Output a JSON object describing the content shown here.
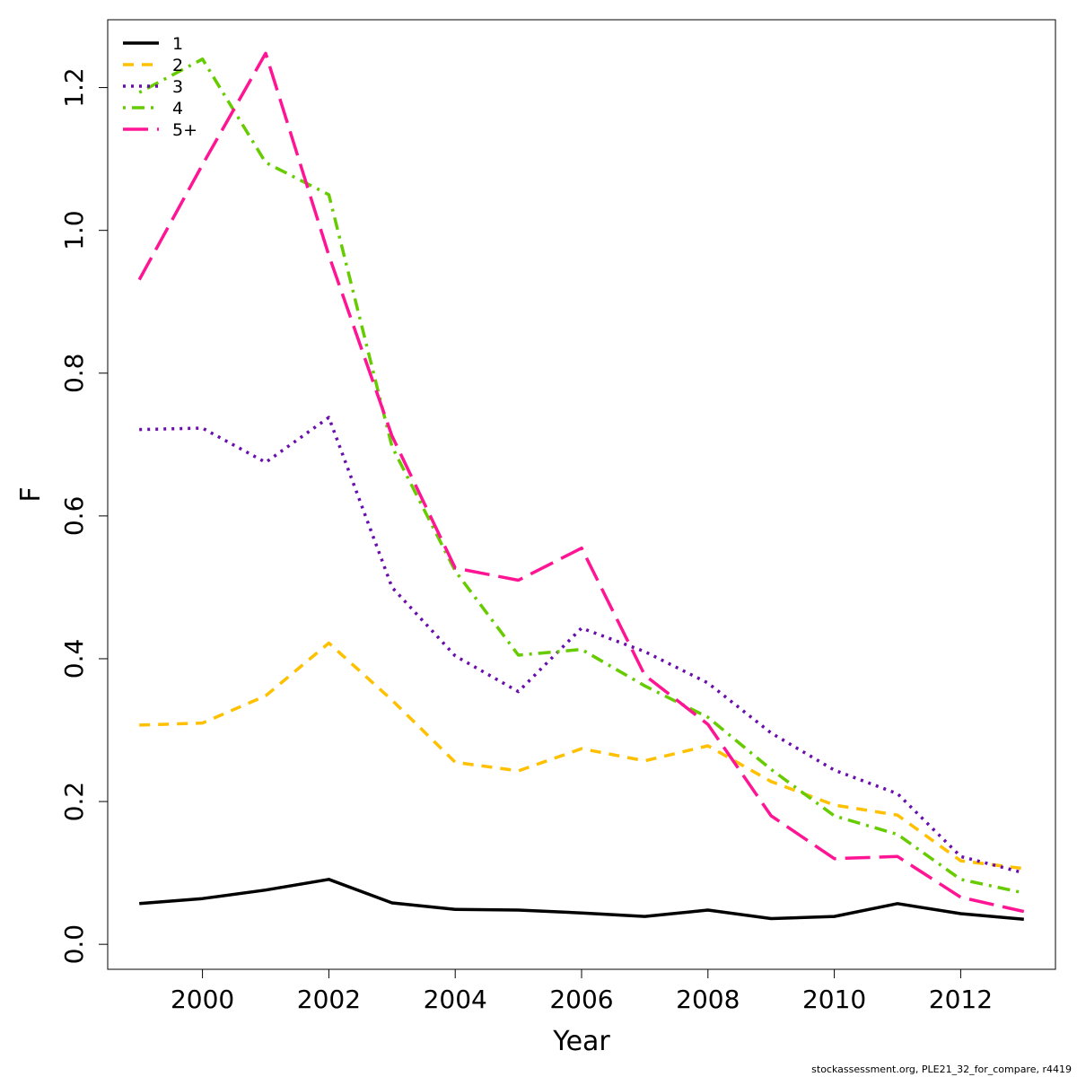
{
  "chart_data": {
    "type": "line",
    "title": "",
    "xlabel": "Year",
    "ylabel": "F",
    "xlim": [
      1998.5,
      2013.5
    ],
    "ylim": [
      -0.035,
      1.295
    ],
    "x_ticks": [
      2000,
      2002,
      2004,
      2006,
      2008,
      2010,
      2012
    ],
    "y_ticks": [
      0.0,
      0.2,
      0.4,
      0.6,
      0.8,
      1.0,
      1.2
    ],
    "y_tick_labels": [
      "0.0",
      "0.2",
      "0.4",
      "0.6",
      "0.8",
      "1.0",
      "1.2"
    ],
    "legend_position": "top-left",
    "x": [
      1999,
      2000,
      2001,
      2002,
      2003,
      2004,
      2005,
      2006,
      2007,
      2008,
      2009,
      2010,
      2011,
      2012,
      2013
    ],
    "series": [
      {
        "name": "1",
        "color": "#000000",
        "dash": "solid",
        "values": [
          0.057,
          0.064,
          0.076,
          0.091,
          0.058,
          0.049,
          0.048,
          0.044,
          0.039,
          0.048,
          0.036,
          0.039,
          0.057,
          0.043,
          0.035
        ]
      },
      {
        "name": "2",
        "color": "#FFC000",
        "dash": "dashed",
        "values": [
          0.307,
          0.31,
          0.348,
          0.422,
          0.342,
          0.255,
          0.243,
          0.274,
          0.257,
          0.278,
          0.228,
          0.195,
          0.181,
          0.117,
          0.106
        ]
      },
      {
        "name": "3",
        "color": "#6A0DAD",
        "dash": "dotted",
        "values": [
          0.721,
          0.723,
          0.675,
          0.738,
          0.5,
          0.404,
          0.354,
          0.443,
          0.41,
          0.366,
          0.296,
          0.244,
          0.211,
          0.123,
          0.1
        ]
      },
      {
        "name": "4",
        "color": "#66CC00",
        "dash": "dotdash",
        "values": [
          1.193,
          1.24,
          1.095,
          1.05,
          0.697,
          0.523,
          0.405,
          0.413,
          0.362,
          0.318,
          0.245,
          0.18,
          0.154,
          0.091,
          0.072
        ]
      },
      {
        "name": "5+",
        "color": "#FF1493",
        "dash": "longdash",
        "values": [
          0.931,
          1.092,
          1.248,
          0.965,
          0.712,
          0.527,
          0.51,
          0.555,
          0.377,
          0.308,
          0.18,
          0.12,
          0.123,
          0.066,
          0.046
        ]
      }
    ]
  },
  "footer": {
    "note": "stockassessment.org, PLE21_32_for_compare, r4419"
  }
}
